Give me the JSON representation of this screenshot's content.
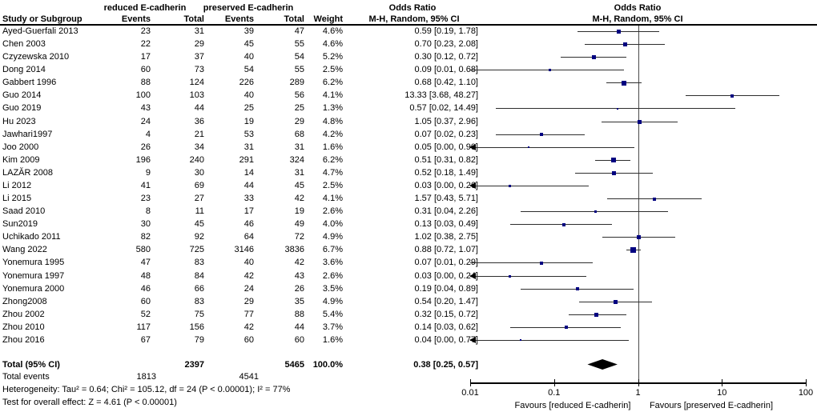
{
  "figure": {
    "group_headers": {
      "reduced": "reduced E-cadherin",
      "preserved": "preserved E-cadherin",
      "or_left": "Odds Ratio",
      "or_right": "Odds Ratio"
    },
    "column_headers": {
      "study": "Study or Subgroup",
      "events1": "Events",
      "total1": "Total",
      "events2": "Events",
      "total2": "Total",
      "weight": "Weight",
      "mh_left": "M-H, Random, 95% CI",
      "mh_right": "M-H, Random, 95% CI"
    }
  },
  "chart_data": {
    "type": "forest",
    "effect_measure": "Odds Ratio",
    "method": "M-H, Random, 95% CI",
    "x_axis": {
      "scale": "log",
      "min": 0.01,
      "max": 100,
      "ticks": [
        "0.01",
        "0.1",
        "1",
        "10",
        "100"
      ]
    },
    "favours_left": "Favours [reduced E-cadherin]",
    "favours_right": "Favours [preserved E-cadherin]",
    "studies": [
      {
        "name": "Ayed-Guerfali 2013",
        "events1": "23",
        "total1": "31",
        "events2": "39",
        "total2": "47",
        "weight": "4.6%",
        "or_text": "0.59 [0.19, 1.78]",
        "or": 0.59,
        "lo": 0.19,
        "hi": 1.78,
        "arrow_left": false
      },
      {
        "name": "Chen 2003",
        "events1": "22",
        "total1": "29",
        "events2": "45",
        "total2": "55",
        "weight": "4.6%",
        "or_text": "0.70 [0.23, 2.08]",
        "or": 0.7,
        "lo": 0.23,
        "hi": 2.08,
        "arrow_left": false
      },
      {
        "name": "Czyzewska 2010",
        "events1": "17",
        "total1": "37",
        "events2": "40",
        "total2": "54",
        "weight": "5.2%",
        "or_text": "0.30 [0.12, 0.72]",
        "or": 0.3,
        "lo": 0.12,
        "hi": 0.72,
        "arrow_left": false
      },
      {
        "name": "Dong 2014",
        "events1": "60",
        "total1": "73",
        "events2": "54",
        "total2": "55",
        "weight": "2.5%",
        "or_text": "0.09 [0.01, 0.68]",
        "or": 0.09,
        "lo": 0.01,
        "hi": 0.68,
        "arrow_left": false
      },
      {
        "name": "Gabbert 1996",
        "events1": "88",
        "total1": "124",
        "events2": "226",
        "total2": "289",
        "weight": "6.2%",
        "or_text": "0.68 [0.42, 1.10]",
        "or": 0.68,
        "lo": 0.42,
        "hi": 1.1,
        "arrow_left": false
      },
      {
        "name": "Guo 2014",
        "events1": "100",
        "total1": "103",
        "events2": "40",
        "total2": "56",
        "weight": "4.1%",
        "or_text": "13.33 [3.68, 48.27]",
        "or": 13.33,
        "lo": 3.68,
        "hi": 48.27,
        "arrow_left": false
      },
      {
        "name": "Guo 2019",
        "events1": "43",
        "total1": "44",
        "events2": "25",
        "total2": "25",
        "weight": "1.3%",
        "or_text": "0.57 [0.02, 14.49]",
        "or": 0.57,
        "lo": 0.02,
        "hi": 14.49,
        "arrow_left": false
      },
      {
        "name": "Hu 2023",
        "events1": "24",
        "total1": "36",
        "events2": "19",
        "total2": "29",
        "weight": "4.8%",
        "or_text": "1.05 [0.37, 2.96]",
        "or": 1.05,
        "lo": 0.37,
        "hi": 2.96,
        "arrow_left": false
      },
      {
        "name": "Jawhari1997",
        "events1": "4",
        "total1": "21",
        "events2": "53",
        "total2": "68",
        "weight": "4.2%",
        "or_text": "0.07 [0.02, 0.23]",
        "or": 0.07,
        "lo": 0.02,
        "hi": 0.23,
        "arrow_left": false
      },
      {
        "name": "Joo 2000",
        "events1": "26",
        "total1": "34",
        "events2": "31",
        "total2": "31",
        "weight": "1.6%",
        "or_text": "0.05 [0.00, 0.90]",
        "or": 0.05,
        "lo": 0.01,
        "hi": 0.9,
        "arrow_left": true
      },
      {
        "name": "Kim 2009",
        "events1": "196",
        "total1": "240",
        "events2": "291",
        "total2": "324",
        "weight": "6.2%",
        "or_text": "0.51 [0.31, 0.82]",
        "or": 0.51,
        "lo": 0.31,
        "hi": 0.82,
        "arrow_left": false
      },
      {
        "name": "LAZĂR 2008",
        "events1": "9",
        "total1": "30",
        "events2": "14",
        "total2": "31",
        "weight": "4.7%",
        "or_text": "0.52 [0.18, 1.49]",
        "or": 0.52,
        "lo": 0.18,
        "hi": 1.49,
        "arrow_left": false
      },
      {
        "name": "Li 2012",
        "events1": "41",
        "total1": "69",
        "events2": "44",
        "total2": "45",
        "weight": "2.5%",
        "or_text": "0.03 [0.00, 0.26]",
        "or": 0.03,
        "lo": 0.01,
        "hi": 0.26,
        "arrow_left": true
      },
      {
        "name": "Li 2015",
        "events1": "23",
        "total1": "27",
        "events2": "33",
        "total2": "42",
        "weight": "4.1%",
        "or_text": "1.57 [0.43, 5.71]",
        "or": 1.57,
        "lo": 0.43,
        "hi": 5.71,
        "arrow_left": false
      },
      {
        "name": "Saad 2010",
        "events1": "8",
        "total1": "11",
        "events2": "17",
        "total2": "19",
        "weight": "2.6%",
        "or_text": "0.31 [0.04, 2.26]",
        "or": 0.31,
        "lo": 0.04,
        "hi": 2.26,
        "arrow_left": false
      },
      {
        "name": "Sun2019",
        "events1": "30",
        "total1": "45",
        "events2": "46",
        "total2": "49",
        "weight": "4.0%",
        "or_text": "0.13 [0.03, 0.49]",
        "or": 0.13,
        "lo": 0.03,
        "hi": 0.49,
        "arrow_left": false
      },
      {
        "name": "Uchikado 2011",
        "events1": "82",
        "total1": "92",
        "events2": "64",
        "total2": "72",
        "weight": "4.9%",
        "or_text": "1.02 [0.38, 2.75]",
        "or": 1.02,
        "lo": 0.38,
        "hi": 2.75,
        "arrow_left": false
      },
      {
        "name": "Wang 2022",
        "events1": "580",
        "total1": "725",
        "events2": "3146",
        "total2": "3836",
        "weight": "6.7%",
        "or_text": "0.88 [0.72, 1.07]",
        "or": 0.88,
        "lo": 0.72,
        "hi": 1.07,
        "arrow_left": false
      },
      {
        "name": "Yonemura 1995",
        "events1": "47",
        "total1": "83",
        "events2": "40",
        "total2": "42",
        "weight": "3.6%",
        "or_text": "0.07 [0.01, 0.29]",
        "or": 0.07,
        "lo": 0.01,
        "hi": 0.29,
        "arrow_left": false
      },
      {
        "name": "Yonemura 1997",
        "events1": "48",
        "total1": "84",
        "events2": "42",
        "total2": "43",
        "weight": "2.6%",
        "or_text": "0.03 [0.00, 0.24]",
        "or": 0.03,
        "lo": 0.01,
        "hi": 0.24,
        "arrow_left": true
      },
      {
        "name": "Yonemura 2000",
        "events1": "46",
        "total1": "66",
        "events2": "24",
        "total2": "26",
        "weight": "3.5%",
        "or_text": "0.19 [0.04, 0.89]",
        "or": 0.19,
        "lo": 0.04,
        "hi": 0.89,
        "arrow_left": false
      },
      {
        "name": "Zhong2008",
        "events1": "60",
        "total1": "83",
        "events2": "29",
        "total2": "35",
        "weight": "4.9%",
        "or_text": "0.54 [0.20, 1.47]",
        "or": 0.54,
        "lo": 0.2,
        "hi": 1.47,
        "arrow_left": false
      },
      {
        "name": "Zhou 2002",
        "events1": "52",
        "total1": "75",
        "events2": "77",
        "total2": "88",
        "weight": "5.4%",
        "or_text": "0.32 [0.15, 0.72]",
        "or": 0.32,
        "lo": 0.15,
        "hi": 0.72,
        "arrow_left": false
      },
      {
        "name": "Zhou 2010",
        "events1": "117",
        "total1": "156",
        "events2": "42",
        "total2": "44",
        "weight": "3.7%",
        "or_text": "0.14 [0.03, 0.62]",
        "or": 0.14,
        "lo": 0.03,
        "hi": 0.62,
        "arrow_left": false
      },
      {
        "name": "Zhou 2016",
        "events1": "67",
        "total1": "79",
        "events2": "60",
        "total2": "60",
        "weight": "1.6%",
        "or_text": "0.04 [0.00, 0.77]",
        "or": 0.04,
        "lo": 0.01,
        "hi": 0.77,
        "arrow_left": true
      }
    ],
    "totals": {
      "label": "Total (95% CI)",
      "total1": "2397",
      "total2": "5465",
      "weight": "100.0%",
      "or_text": "0.38 [0.25, 0.57]",
      "or": 0.38,
      "lo": 0.25,
      "hi": 0.57
    },
    "total_events": {
      "label": "Total events",
      "events1": "1813",
      "events2": "4541"
    },
    "heterogeneity": "Heterogeneity: Tau² = 0.64; Chi² = 105.12, df = 24 (P < 0.00001); I² = 77%",
    "overall_effect": "Test for overall effect: Z = 4.61 (P < 0.00001)",
    "marker_color": "#000080",
    "line_color": "#2e2e2e"
  }
}
